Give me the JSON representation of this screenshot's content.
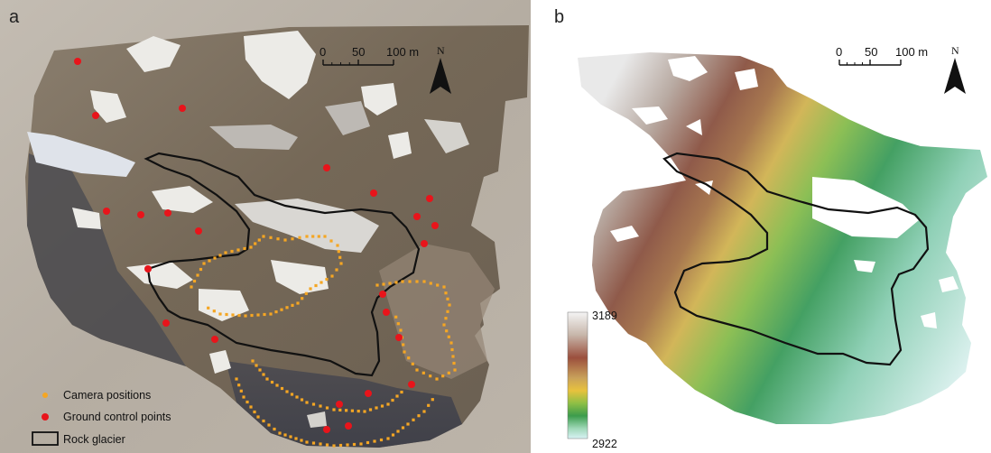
{
  "panels": {
    "a": {
      "label": "a",
      "scale_bar": {
        "ticks": [
          "0",
          "50",
          "100 m"
        ]
      },
      "north_label": "N",
      "legend": [
        {
          "label": "Camera positions",
          "symbol": "camera-position",
          "color": "#f5a623"
        },
        {
          "label": "Ground control points",
          "symbol": "ground-control-point",
          "color": "#e8141b"
        },
        {
          "label": "Rock glacier",
          "symbol": "rock-glacier-outline",
          "color": "#111111"
        }
      ]
    },
    "b": {
      "label": "b",
      "scale_bar": {
        "ticks": [
          "0",
          "50",
          "100 m"
        ]
      },
      "north_label": "N",
      "colorbar": {
        "max_label": "3189",
        "min_label": "2922",
        "stops": [
          "#f4f4f4",
          "#c9b7aa",
          "#9b4f3d",
          "#c9a15a",
          "#e8c23d",
          "#8fbf45",
          "#3c9c4c",
          "#9fd8b8",
          "#d8f2f4"
        ]
      }
    }
  },
  "colors": {
    "ortho_rock": "#7c6e5f",
    "ortho_snow": "#eceae6",
    "background_terrain": "#b9b1a6",
    "gcp": "#e8141b",
    "camera": "#f5a623",
    "outline": "#111111"
  }
}
